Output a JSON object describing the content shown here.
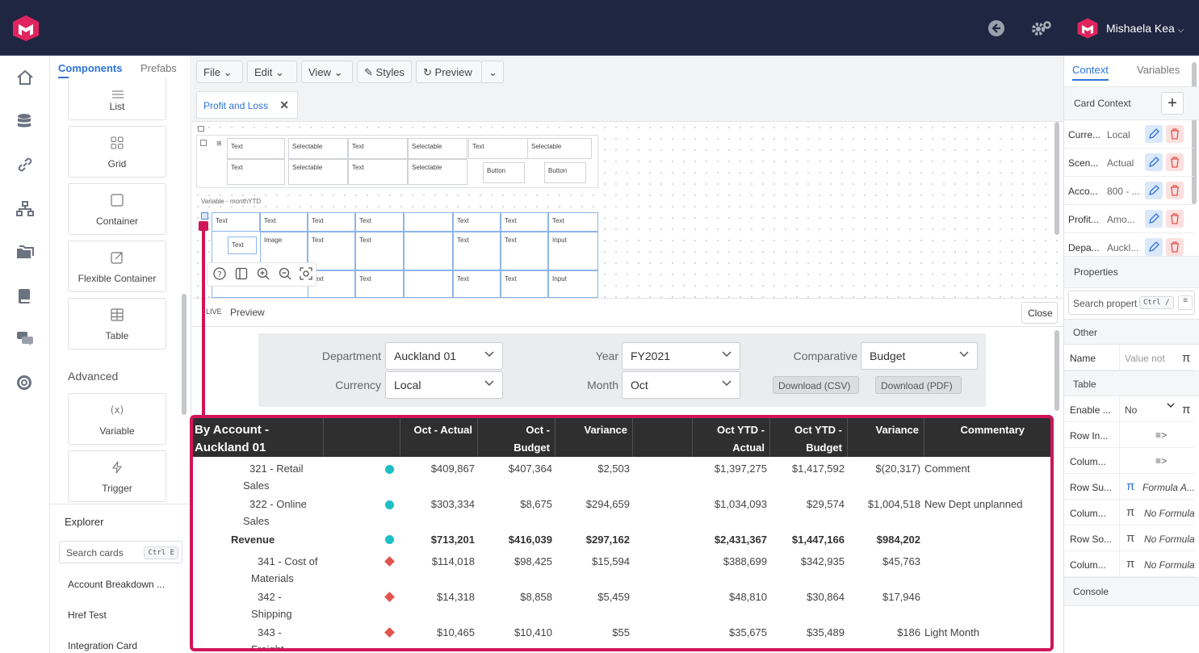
{
  "topbar": {
    "user_name": "Mishaela Kea"
  },
  "library": {
    "tabs": [
      "Components",
      "Prefabs"
    ],
    "components": [
      "List",
      "Grid",
      "Container",
      "Flexible Container",
      "Table"
    ],
    "advanced_heading": "Advanced",
    "advanced": [
      "Variable",
      "Trigger"
    ]
  },
  "explorer": {
    "title": "Explorer",
    "search_placeholder": "Search cards",
    "shortcut": "Ctrl E",
    "cards": [
      "Account Breakdown ...",
      "Href Test",
      "Integration Card"
    ]
  },
  "toolbar": {
    "file": "File",
    "edit": "Edit",
    "view": "View",
    "styles": "Styles",
    "preview": "Preview"
  },
  "tab": {
    "title": "Profit and Loss"
  },
  "canvas": {
    "variable_label": "Variable - monthYTD",
    "text": "Text",
    "selectable": "Selectable",
    "button": "Button",
    "image": "Image",
    "input": "Input"
  },
  "preview_bar": {
    "live": "LIVE",
    "preview": "Preview",
    "close": "Close"
  },
  "filters": {
    "department_label": "Department",
    "department": "Auckland 01",
    "currency_label": "Currency",
    "currency": "Local",
    "year_label": "Year",
    "year": "FY2021",
    "month_label": "Month",
    "month": "Oct",
    "comparative_label": "Comparative",
    "comparative": "Budget",
    "download_csv": "Download (CSV)",
    "download_pdf": "Download (PDF)"
  },
  "report": {
    "header_title_1": "By Account -",
    "header_title_2": "Auckland 01",
    "columns": [
      "Oct - Actual",
      "Oct -",
      "Budget",
      "Variance",
      "Oct YTD -",
      "Actual",
      "Oct YTD -",
      "Budget",
      "Variance",
      "Commentary"
    ],
    "rows": [
      {
        "a1": "321 - Retail",
        "a2": "Sales",
        "actual": "$409,867",
        "budget": "$407,364",
        "var": "$2,503",
        "ytd_actual": "$1,397,275",
        "ytd_budget": "$1,417,592",
        "ytd_var": "$(20,317)",
        "comment": "Comment"
      },
      {
        "a1": "322 - Online",
        "a2": "Sales",
        "actual": "$303,334",
        "budget": "$8,675",
        "var": "$294,659",
        "ytd_actual": "$1,034,093",
        "ytd_budget": "$29,574",
        "ytd_var": "$1,004,518",
        "comment": "New Dept unplanned"
      },
      {
        "a1": "Revenue",
        "a2": "",
        "actual": "$713,201",
        "budget": "$416,039",
        "var": "$297,162",
        "ytd_actual": "$2,431,367",
        "ytd_budget": "$1,447,166",
        "ytd_var": "$984,202",
        "comment": ""
      },
      {
        "a1": "341 - Cost of",
        "a2": "Materials",
        "actual": "$114,018",
        "budget": "$98,425",
        "var": "$15,594",
        "ytd_actual": "$388,699",
        "ytd_budget": "$342,935",
        "ytd_var": "$45,763",
        "comment": ""
      },
      {
        "a1": "342 -",
        "a2": "Shipping",
        "actual": "$14,318",
        "budget": "$8,858",
        "var": "$5,459",
        "ytd_actual": "$48,810",
        "ytd_budget": "$30,864",
        "ytd_var": "$17,946",
        "comment": ""
      },
      {
        "a1": "343 -",
        "a2": "Freight",
        "actual": "$10,465",
        "budget": "$10,410",
        "var": "$55",
        "ytd_actual": "$35,675",
        "ytd_budget": "$35,489",
        "ytd_var": "$186",
        "comment": "Light Month"
      }
    ]
  },
  "right_panel": {
    "tabs": [
      "Context",
      "Variables"
    ],
    "card_context": "Card Context",
    "context_rows": [
      {
        "k": "Curre...",
        "v": "Local"
      },
      {
        "k": "Scen...",
        "v": "Actual"
      },
      {
        "k": "Acco...",
        "v": "800 - ..."
      },
      {
        "k": "Profit...",
        "v": "Amo..."
      },
      {
        "k": "Depa...",
        "v": "Auckl..."
      }
    ],
    "properties": "Properties",
    "search_placeholder": "Search propert",
    "search_shortcut": "Ctrl /",
    "other": "Other",
    "name_label": "Name",
    "name_placeholder": "Value not",
    "table": "Table",
    "enable_label": "Enable ...",
    "enable_value": "No",
    "prop_rows": [
      {
        "k": "Row In...",
        "v": ""
      },
      {
        "k": "Colum...",
        "v": ""
      },
      {
        "k": "Row Su...",
        "v": "Formula A..."
      },
      {
        "k": "Colum...",
        "v": "No Formula"
      },
      {
        "k": "Row So...",
        "v": "No Formula"
      },
      {
        "k": "Colum...",
        "v": "No Formula"
      }
    ],
    "console": "Console"
  },
  "colors": {
    "accent": "#2d73d8",
    "brand": "#e0245e",
    "topbar": "#1f2641",
    "highlight": "#d0155a",
    "teal": "#1bbfc4",
    "red": "#e0544e"
  }
}
